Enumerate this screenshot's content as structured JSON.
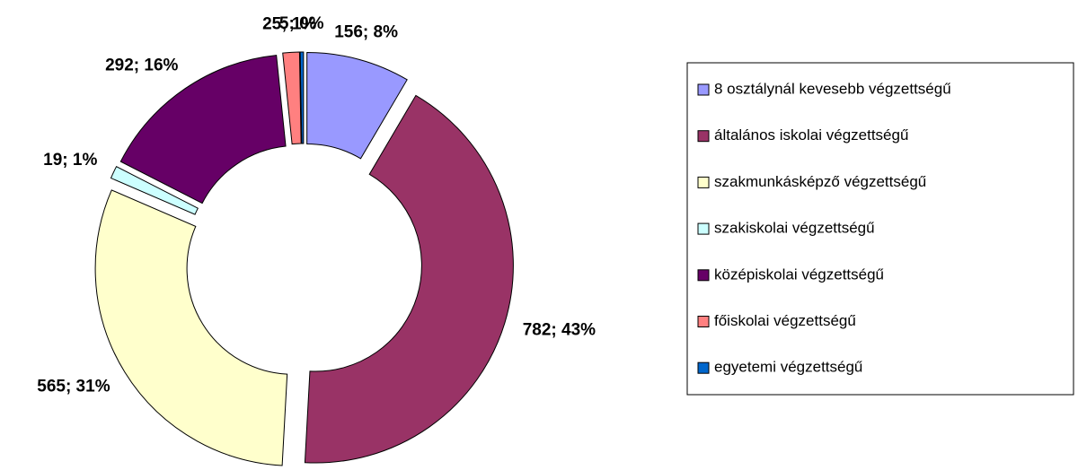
{
  "chart_data": {
    "type": "donut",
    "categories": [
      "8 osztálynál kevesebb végzettségű",
      "általános iskolai végzettségű",
      "szakmunkásképző végzettségű",
      "szakiskolai végzettségű",
      "középiskolai végzettségű",
      "főiskolai végzettségű",
      "egyetemi végzettségű"
    ],
    "values": [
      156,
      782,
      565,
      19,
      292,
      25,
      5
    ],
    "value_labels": [
      "156; 8%",
      "782; 43%",
      "565; 31%",
      "19; 1%",
      "292; 16%",
      "25; 1%",
      "5; 0%"
    ],
    "colors": [
      "#9999ff",
      "#993366",
      "#ffffcc",
      "#ccffff",
      "#660066",
      "#ff8080",
      "#0066cc"
    ],
    "legend": "right"
  }
}
